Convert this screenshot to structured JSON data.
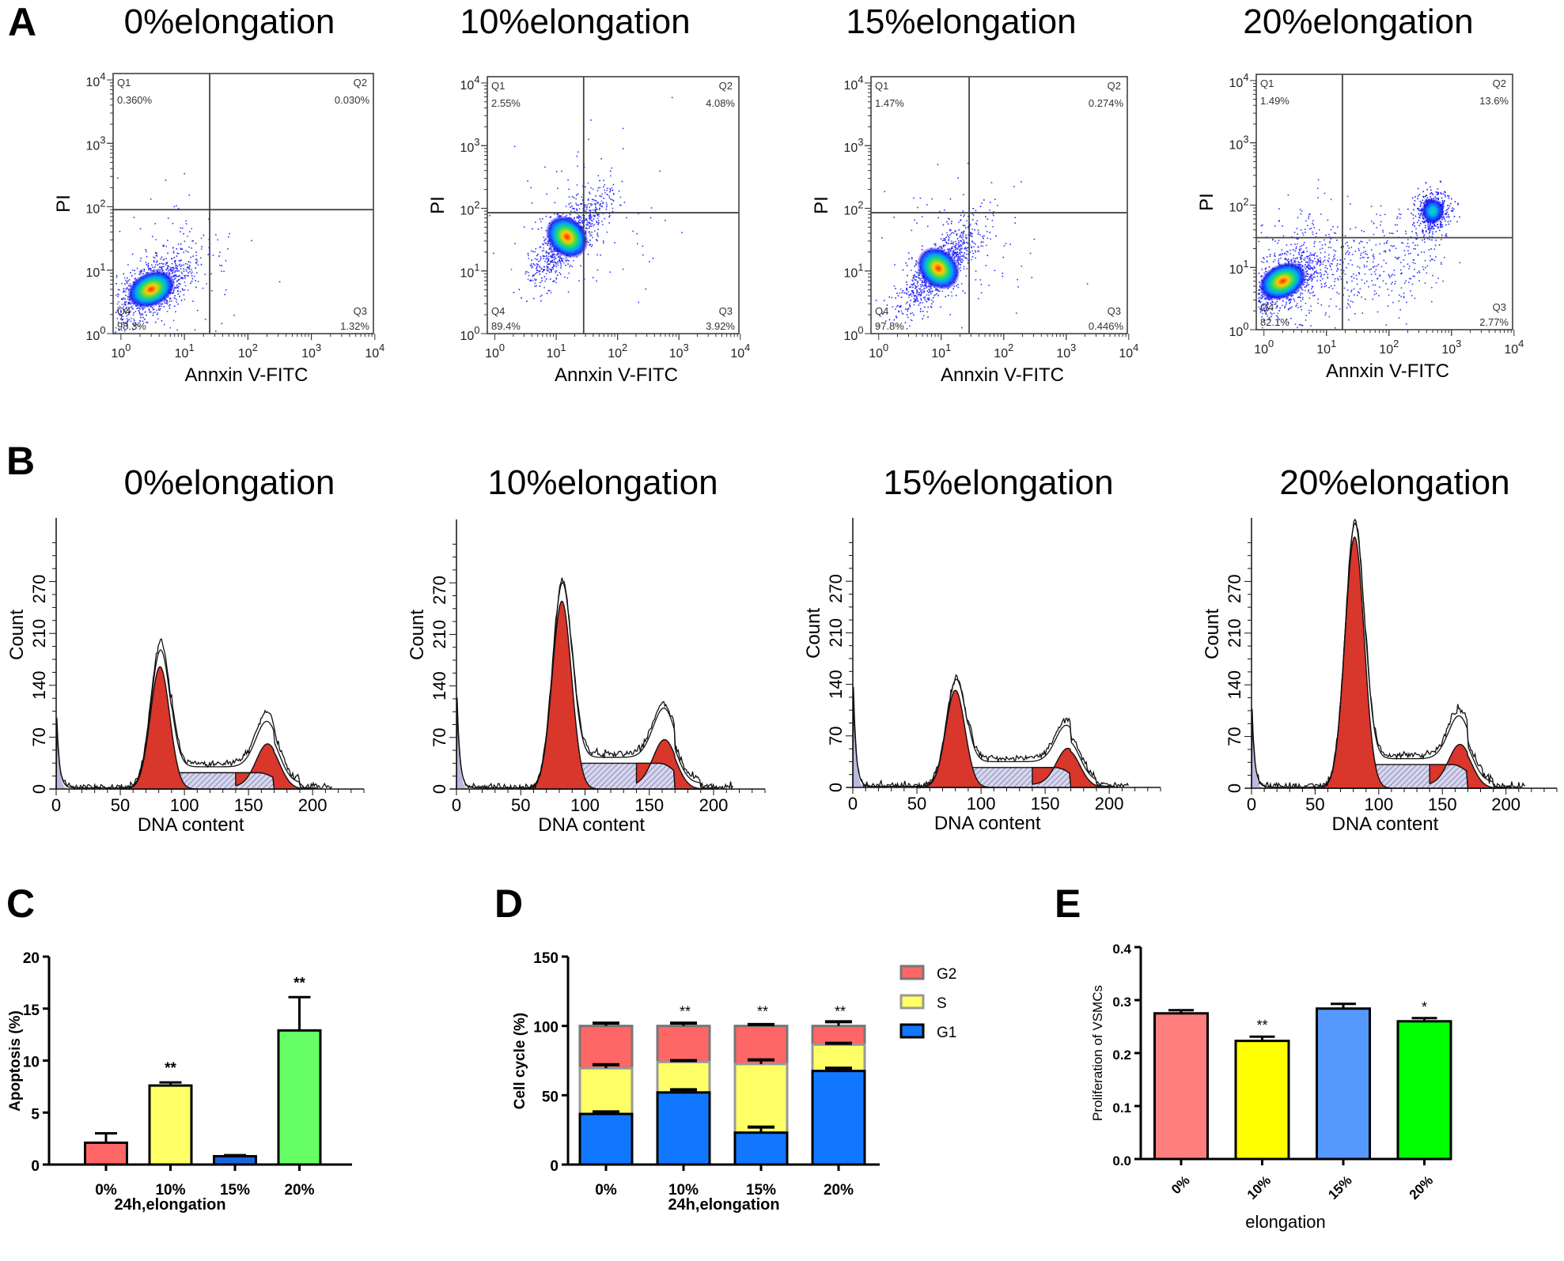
{
  "figure": {
    "panels": [
      "A",
      "B",
      "C",
      "D",
      "E"
    ]
  },
  "chart_data": [
    {
      "panel": "A",
      "type": "scatter",
      "subtype": "flow-cytometry-quadrant",
      "xlabel": "Annxin V-FITC",
      "ylabel": "PI",
      "xscale": "log",
      "yscale": "log",
      "xlim": [
        1,
        10000
      ],
      "ylim": [
        1,
        10000
      ],
      "x_ticks": [
        "10^0",
        "10^1",
        "10^2",
        "10^3",
        "10^4"
      ],
      "y_ticks": [
        "10^0",
        "10^1",
        "10^2",
        "10^3",
        "10^4"
      ],
      "plots": [
        {
          "title": "0%elongation",
          "quadrants": {
            "Q1": "0.360%",
            "Q2": "0.030%",
            "Q3": "1.32%",
            "Q4": "98.3%"
          },
          "gate": {
            "x": 25,
            "y": 90
          },
          "population_center": {
            "x": 3,
            "y": 5
          }
        },
        {
          "title": "10%elongation",
          "quadrants": {
            "Q1": "2.55%",
            "Q2": "4.08%",
            "Q3": "3.92%",
            "Q4": "89.4%"
          },
          "gate": {
            "x": 28,
            "y": 85
          },
          "population_center": {
            "x": 15,
            "y": 35
          }
        },
        {
          "title": "15%elongation",
          "quadrants": {
            "Q1": "1.47%",
            "Q2": "0.274%",
            "Q3": "0.446%",
            "Q4": "97.8%"
          },
          "gate": {
            "x": 28,
            "y": 85
          },
          "population_center": {
            "x": 9,
            "y": 11
          }
        },
        {
          "title": "20%elongation",
          "quadrants": {
            "Q1": "1.49%",
            "Q2": "13.6%",
            "Q3": "2.77%",
            "Q4": "82.1%"
          },
          "gate": {
            "x": 18,
            "y": 30
          },
          "population_center": {
            "x": 2,
            "y": 6
          },
          "secondary_center": {
            "x": 500,
            "y": 80
          }
        }
      ]
    },
    {
      "panel": "B",
      "type": "area",
      "subtype": "dna-content-histogram",
      "xlabel": "DNA content",
      "ylabel": "Count",
      "xlim": [
        0,
        240
      ],
      "ylim": [
        0,
        350
      ],
      "x_ticks": [
        0,
        50,
        100,
        150,
        200
      ],
      "y_ticks": [
        0,
        70,
        140,
        210,
        270
      ],
      "colors": {
        "g1_g2": "#d9362c",
        "s_phase": "#b8b8dc",
        "debris": "#b9b9e0"
      },
      "plots": [
        {
          "title": "0%elongation",
          "debris_peak": 95,
          "g1_peak": {
            "x": 81,
            "y": 165
          },
          "g1_observed": 185,
          "s_plateau": 22,
          "g2_peak": {
            "x": 165,
            "y": 58
          },
          "g2_observed": 72
        },
        {
          "title": "10%elongation",
          "debris_peak": 125,
          "g1_peak": {
            "x": 82,
            "y": 255
          },
          "g1_observed": 262,
          "s_plateau": 35,
          "g2_peak": {
            "x": 162,
            "y": 62
          },
          "g2_observed": 70
        },
        {
          "title": "15%elongation",
          "debris_peak": 135,
          "g1_peak": {
            "x": 80,
            "y": 132
          },
          "g1_observed": 134,
          "s_plateau": 27,
          "g2_peak": {
            "x": 168,
            "y": 50
          },
          "g2_observed": 58
        },
        {
          "title": "20%elongation",
          "debris_peak": 105,
          "g1_peak": {
            "x": 81,
            "y": 340
          },
          "g1_observed": 342,
          "s_plateau": 32,
          "g2_peak": {
            "x": 164,
            "y": 55
          },
          "g2_observed": 65
        }
      ]
    },
    {
      "panel": "C",
      "type": "bar",
      "title": "",
      "xlabel": "24h,elongation",
      "ylabel": "Apoptosis (%)",
      "categories": [
        "0%",
        "10%",
        "15%",
        "20%"
      ],
      "values": [
        2.1,
        7.6,
        0.8,
        12.9
      ],
      "errors": [
        0.9,
        0.3,
        0.1,
        3.2
      ],
      "significance": [
        "",
        "**",
        "",
        "**"
      ],
      "colors": [
        "#ff6666",
        "#ffff66",
        "#1a66dd",
        "#66ff66"
      ],
      "ylim": [
        0,
        20
      ],
      "y_ticks": [
        0,
        5,
        10,
        15,
        20
      ]
    },
    {
      "panel": "D",
      "type": "bar",
      "subtype": "stacked",
      "xlabel": "24h,elongation",
      "ylabel": "Cell cycle (%)",
      "categories": [
        "0%",
        "10%",
        "15%",
        "20%"
      ],
      "series": [
        {
          "name": "G1",
          "values": [
            36.5,
            52,
            23,
            67.5
          ],
          "errors": [
            1.5,
            2,
            4,
            2
          ],
          "color": "#1177ff"
        },
        {
          "name": "S",
          "values": [
            33,
            22,
            49.5,
            19
          ],
          "errors": [
            2.5,
            1,
            3,
            1
          ],
          "color": "#ffff66"
        },
        {
          "name": "G2",
          "values": [
            30.5,
            26,
            27.5,
            13.5
          ],
          "errors": [
            2,
            2,
            1,
            3
          ],
          "color": "#ff6666"
        }
      ],
      "legend": [
        "G2",
        "S",
        "G1"
      ],
      "legend_position": "right",
      "significance": [
        "",
        "**",
        "**",
        "**"
      ],
      "ylim": [
        0,
        150
      ],
      "y_ticks": [
        0,
        50,
        100,
        150
      ]
    },
    {
      "panel": "E",
      "type": "bar",
      "xlabel": "elongation",
      "ylabel": "Proliferation of VSMCs",
      "categories": [
        "0%",
        "10%",
        "15%",
        "20%"
      ],
      "values": [
        0.275,
        0.223,
        0.284,
        0.26
      ],
      "errors": [
        0.006,
        0.008,
        0.009,
        0.006
      ],
      "significance": [
        "",
        "**",
        "",
        "*"
      ],
      "colors": [
        "#ff7f7f",
        "#ffff00",
        "#5599ff",
        "#00ff00"
      ],
      "ylim": [
        0,
        0.4
      ],
      "y_ticks": [
        "0.0",
        "0.1",
        "0.2",
        "0.3",
        "0.4"
      ],
      "x_tick_rotation": "45deg"
    }
  ]
}
